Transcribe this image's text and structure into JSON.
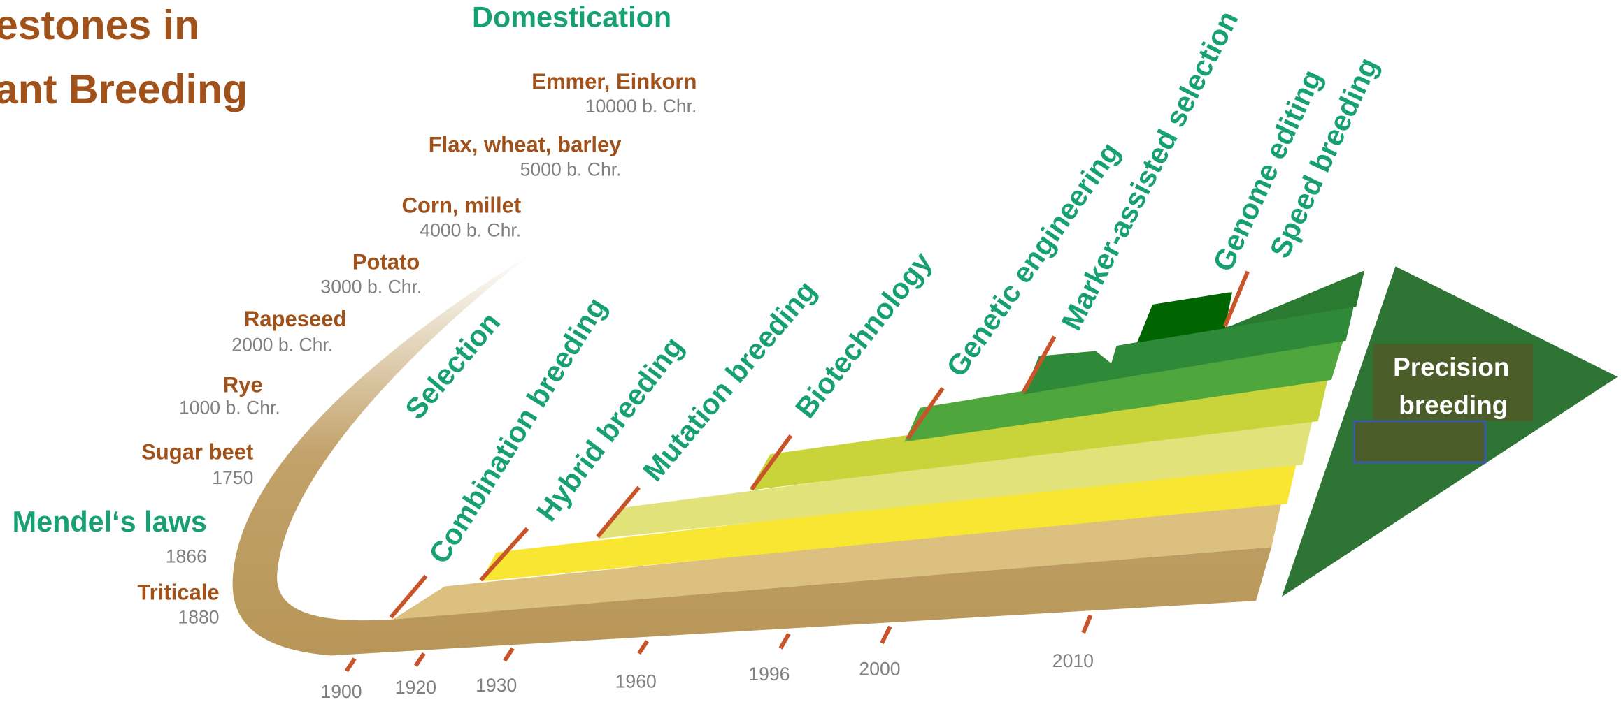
{
  "title": {
    "lines": [
      "estones in",
      "ant Breeding"
    ]
  },
  "domestication": {
    "heading": "Domestication",
    "items": [
      {
        "name": "Emmer, Einkorn",
        "date": "10000 b. Chr."
      },
      {
        "name": "Flax, wheat, barley",
        "date": "5000 b. Chr."
      },
      {
        "name": "Corn, millet",
        "date": "4000 b. Chr."
      },
      {
        "name": "Potato",
        "date": "3000 b. Chr."
      },
      {
        "name": "Rapeseed",
        "date": "2000 b. Chr."
      },
      {
        "name": "Rye",
        "date": "1000 b. Chr."
      },
      {
        "name": "Sugar beet",
        "date": "1750"
      }
    ]
  },
  "mendel": {
    "name": "Mendel‘s laws",
    "year": "1866"
  },
  "triticale": {
    "name": "Triticale",
    "year": "1880"
  },
  "methods": [
    "Selection",
    "Combination breeding",
    "Hybrid breeding",
    "Mutation breeding",
    "Biotechnology",
    "Genetic engineering",
    "Marker-assisted selection",
    "Genome editing",
    "Speed breeding"
  ],
  "years": [
    "1900",
    "1920",
    "1930",
    "1960",
    "1996",
    "2000",
    "2010"
  ],
  "precision": {
    "lines": [
      "Precision",
      "breeding"
    ]
  }
}
